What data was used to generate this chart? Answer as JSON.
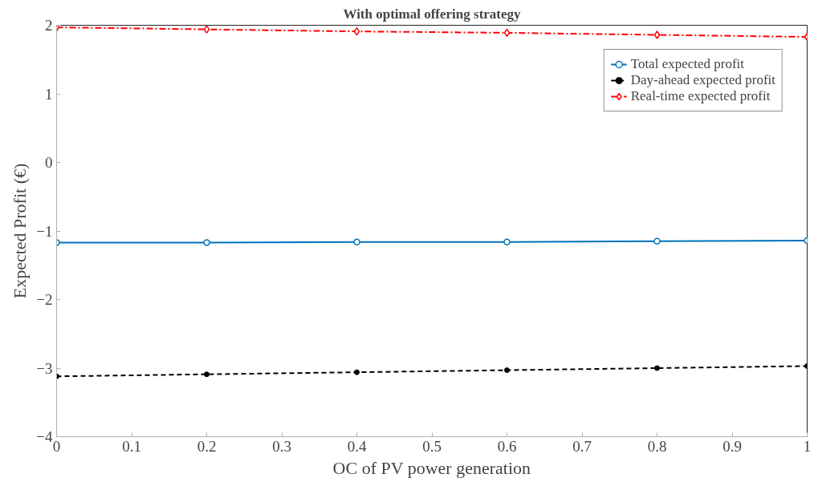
{
  "chart_data": {
    "type": "line",
    "title": "With optimal offering strategy",
    "xlabel": "OC of PV power generation",
    "ylabel": "Expected Profit (€)",
    "x": [
      0,
      0.2,
      0.4,
      0.6,
      0.8,
      1
    ],
    "series": [
      {
        "name": "Total expected profit",
        "color": "#0072bd",
        "values": [
          -1.17,
          -1.17,
          -1.16,
          -1.16,
          -1.15,
          -1.14
        ],
        "marker": "circle",
        "line_style": "solid"
      },
      {
        "name": "Day-ahead expected profit",
        "color": "#000000",
        "values": [
          -3.12,
          -3.09,
          -3.06,
          -3.03,
          -3.0,
          -2.97
        ],
        "marker": "dot",
        "line_style": "dashed"
      },
      {
        "name": "Real-time expected profit",
        "color": "#ff0000",
        "values": [
          1.97,
          1.94,
          1.91,
          1.89,
          1.86,
          1.83
        ],
        "marker": "diamond",
        "line_style": "dashdot"
      }
    ],
    "xlim": [
      0,
      1
    ],
    "ylim": [
      -4,
      2
    ],
    "xticks": [
      0,
      0.1,
      0.2,
      0.3,
      0.4,
      0.5,
      0.6,
      0.7,
      0.8,
      0.9,
      1
    ],
    "yticks": [
      -4,
      -3,
      -2,
      -1,
      0,
      1,
      2
    ],
    "grid": false,
    "legend": "top right"
  }
}
